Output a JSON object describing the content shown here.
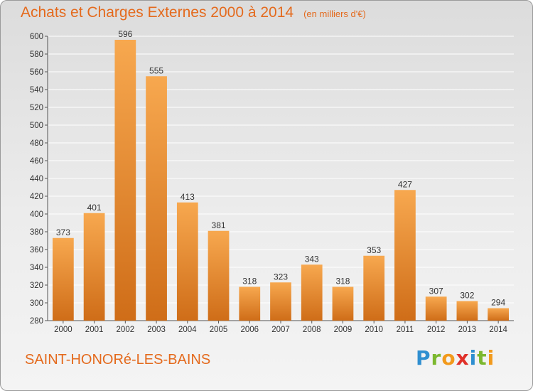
{
  "title": "Achats et Charges Externes 2000 à 2014",
  "subtitle": "(en milliers d'€)",
  "commune": "SAINT-HONORé-LES-BAINS",
  "brand": {
    "letters": [
      "P",
      "r",
      "o",
      "x",
      "i",
      "t",
      "i"
    ],
    "colors": [
      "#2f8fd0",
      "#7cb82f",
      "#f29a1c",
      "#e0312a",
      "#2f8fd0",
      "#7cb82f",
      "#f29a1c"
    ]
  },
  "colors": {
    "accent": "#e46a1d",
    "bar_light": "#f7a84f",
    "bar_dark": "#cf6d18",
    "grid": "#ffffff",
    "text": "#333333"
  },
  "chart_data": {
    "type": "bar",
    "categories": [
      "2000",
      "2001",
      "2002",
      "2003",
      "2004",
      "2005",
      "2006",
      "2007",
      "2008",
      "2009",
      "2010",
      "2011",
      "2012",
      "2013",
      "2014"
    ],
    "values": [
      373,
      401,
      596,
      555,
      413,
      381,
      318,
      323,
      343,
      318,
      353,
      427,
      307,
      302,
      294
    ],
    "ylim": [
      280,
      600
    ],
    "yticks": [
      280,
      300,
      320,
      340,
      360,
      380,
      400,
      420,
      440,
      460,
      480,
      500,
      520,
      540,
      560,
      580,
      600
    ],
    "grid": true,
    "data_labels": true
  }
}
